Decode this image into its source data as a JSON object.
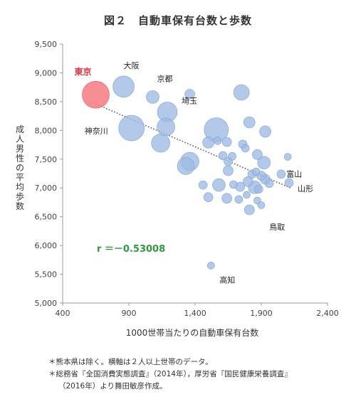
{
  "chart_data": {
    "type": "scatter",
    "title": "図２　自動車保有台数と歩数",
    "xlabel": "1000世帯当たりの自動車保有台数",
    "ylabel": "成人男性の平均歩数",
    "xlim": [
      400,
      2400
    ],
    "ylim": [
      5000,
      9500
    ],
    "xticks": [
      400,
      900,
      1400,
      1900,
      2400
    ],
    "xtick_labels": [
      "400",
      "900",
      "1,400",
      "1,900",
      "2,400"
    ],
    "yticks": [
      5000,
      5500,
      6000,
      6500,
      7000,
      7500,
      8000,
      8500,
      9000,
      9500
    ],
    "ytick_labels": [
      "5,000",
      "5,500",
      "6,000",
      "6,500",
      "7,000",
      "7,500",
      "8,000",
      "8,500",
      "9,000",
      "9,500"
    ],
    "grid": false,
    "colors": {
      "points": "#9fbbe3",
      "point_stroke": "#7ea3d6",
      "highlight": "#f47a80",
      "trend": "#555555",
      "corr": "#2e9b3a"
    },
    "highlight_label": "東京",
    "points": [
      {
        "x": 650,
        "y": 8620,
        "size": 38,
        "label": "東京",
        "highlight": true
      },
      {
        "x": 860,
        "y": 8760,
        "size": 30,
        "label": "大阪"
      },
      {
        "x": 1080,
        "y": 8580,
        "size": 18,
        "label": "京都"
      },
      {
        "x": 1190,
        "y": 8320,
        "size": 28,
        "label": "埼玉"
      },
      {
        "x": 920,
        "y": 8040,
        "size": 36,
        "label": "神奈川"
      },
      {
        "x": 1180,
        "y": 8060,
        "size": 25
      },
      {
        "x": 1140,
        "y": 7780,
        "size": 26
      },
      {
        "x": 1360,
        "y": 8630,
        "size": 14
      },
      {
        "x": 1500,
        "y": 7790,
        "size": 16
      },
      {
        "x": 1560,
        "y": 8010,
        "size": 34
      },
      {
        "x": 1640,
        "y": 7800,
        "size": 13
      },
      {
        "x": 1570,
        "y": 7820,
        "size": 11
      },
      {
        "x": 1750,
        "y": 8660,
        "size": 22
      },
      {
        "x": 1810,
        "y": 8140,
        "size": 16
      },
      {
        "x": 1930,
        "y": 7980,
        "size": 16
      },
      {
        "x": 1760,
        "y": 7760,
        "size": 12
      },
      {
        "x": 1780,
        "y": 7690,
        "size": 11
      },
      {
        "x": 1360,
        "y": 7460,
        "size": 26
      },
      {
        "x": 1330,
        "y": 7380,
        "size": 24
      },
      {
        "x": 1610,
        "y": 7560,
        "size": 12
      },
      {
        "x": 1650,
        "y": 7460,
        "size": 12
      },
      {
        "x": 1680,
        "y": 7550,
        "size": 11
      },
      {
        "x": 1650,
        "y": 7300,
        "size": 14
      },
      {
        "x": 1460,
        "y": 7050,
        "size": 12
      },
      {
        "x": 1580,
        "y": 7050,
        "size": 18
      },
      {
        "x": 1690,
        "y": 7060,
        "size": 11
      },
      {
        "x": 1740,
        "y": 7020,
        "size": 13
      },
      {
        "x": 1800,
        "y": 7110,
        "size": 14
      },
      {
        "x": 1830,
        "y": 7240,
        "size": 12
      },
      {
        "x": 1860,
        "y": 7280,
        "size": 11
      },
      {
        "x": 1870,
        "y": 7580,
        "size": 14
      },
      {
        "x": 1920,
        "y": 7440,
        "size": 18
      },
      {
        "x": 1900,
        "y": 7210,
        "size": 13
      },
      {
        "x": 1930,
        "y": 7150,
        "size": 14
      },
      {
        "x": 1850,
        "y": 7010,
        "size": 18
      },
      {
        "x": 1880,
        "y": 6980,
        "size": 12
      },
      {
        "x": 1960,
        "y": 7080,
        "size": 12
      },
      {
        "x": 2050,
        "y": 7240,
        "size": 12
      },
      {
        "x": 2100,
        "y": 7540,
        "size": 10,
        "label": "富山"
      },
      {
        "x": 2110,
        "y": 7090,
        "size": 12,
        "label": "山形"
      },
      {
        "x": 1500,
        "y": 6840,
        "size": 13
      },
      {
        "x": 1640,
        "y": 6820,
        "size": 14
      },
      {
        "x": 1730,
        "y": 6800,
        "size": 11
      },
      {
        "x": 1790,
        "y": 6880,
        "size": 10
      },
      {
        "x": 1810,
        "y": 6620,
        "size": 14,
        "label": "鳥取"
      },
      {
        "x": 1870,
        "y": 6780,
        "size": 10
      },
      {
        "x": 1900,
        "y": 6700,
        "size": 10
      },
      {
        "x": 1520,
        "y": 5650,
        "size": 10,
        "label": "高知"
      }
    ],
    "trendline": {
      "x": [
        650,
        2120
      ],
      "y": [
        8460,
        7000
      ]
    },
    "annotation": "r ＝－0.53008"
  },
  "notes": [
    "＊熊本県は除く。横軸は２人以上世帯のデータ。",
    "＊総務省『全国消費実態調査』（2014年），厚労省『国民健康栄養調査』",
    "（2016年）より舞田敏彦作成。"
  ]
}
